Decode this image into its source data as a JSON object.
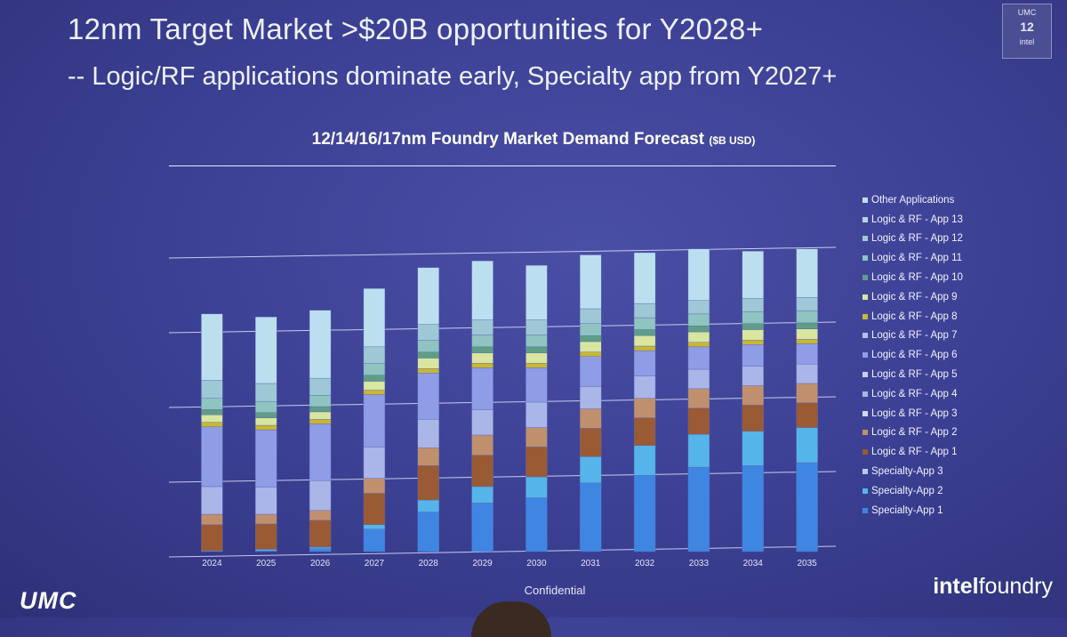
{
  "header": {
    "title_main": "12nm Target Market  >$20B opportunities for Y2028+",
    "title_sub": "-- Logic/RF applications dominate early, Specialty app from Y2027+",
    "badge_top": "UMC",
    "badge_num": "12",
    "badge_bottom": "intel"
  },
  "footer": {
    "confidential": "Confidential",
    "umc_logo": "UMC",
    "intel_logo_a": "intel",
    "intel_logo_b": "foundry"
  },
  "chart_data": {
    "type": "bar",
    "stacked": true,
    "title": "12/14/16/17nm Foundry Market Demand Forecast",
    "title_unit": "($B USD)",
    "grid": true,
    "legend_position": "right",
    "categories": [
      "2024",
      "2025",
      "2026",
      "2027",
      "2028",
      "2029",
      "2030",
      "2031",
      "2032",
      "2033",
      "2034",
      "2035"
    ],
    "series": [
      {
        "name": "Specialty-App 1",
        "color": "#3f86e3",
        "values": [
          0.0,
          0.1,
          0.4,
          3.0,
          5.3,
          6.5,
          7.2,
          9.2,
          10.2,
          11.3,
          11.5,
          11.9
        ]
      },
      {
        "name": "Specialty-App 2",
        "color": "#55b5ea",
        "values": [
          0.1,
          0.2,
          0.2,
          0.6,
          1.6,
          2.2,
          2.8,
          3.5,
          4.0,
          4.4,
          4.6,
          4.7
        ]
      },
      {
        "name": "Specialty-App 3",
        "color": "#b8c8ea",
        "values": [
          0,
          0,
          0,
          0,
          0,
          0,
          0,
          0,
          0,
          0,
          0,
          0
        ]
      },
      {
        "name": "Logic & RF - App 1",
        "color": "#9a5a34",
        "values": [
          3.5,
          3.4,
          3.6,
          4.2,
          4.6,
          4.2,
          4.0,
          3.8,
          3.7,
          3.5,
          3.5,
          3.3
        ]
      },
      {
        "name": "Logic & RF - App 2",
        "color": "#c0906e",
        "values": [
          1.4,
          1.3,
          1.3,
          2.0,
          2.4,
          2.7,
          2.6,
          2.6,
          2.6,
          2.6,
          2.6,
          2.6
        ]
      },
      {
        "name": "Logic & RF - App 3",
        "color": "#d2d8f0",
        "values": [
          0,
          0,
          0,
          0,
          0,
          0,
          0,
          0,
          0,
          0,
          0,
          0
        ]
      },
      {
        "name": "Logic & RF - App 4",
        "color": "#aab6e8",
        "values": [
          3.7,
          3.6,
          4.0,
          4.2,
          3.8,
          3.4,
          3.4,
          3.0,
          3.0,
          2.6,
          2.6,
          2.6
        ]
      },
      {
        "name": "Logic & RF - App 5",
        "color": "#c6cfef",
        "values": [
          0,
          0,
          0,
          0,
          0,
          0,
          0,
          0,
          0,
          0,
          0,
          0
        ]
      },
      {
        "name": "Logic & RF - App 6",
        "color": "#8f9de6",
        "values": [
          8.0,
          7.7,
          7.6,
          7.0,
          6.2,
          5.6,
          4.6,
          4.0,
          3.4,
          3.0,
          2.9,
          2.7
        ]
      },
      {
        "name": "Logic & RF - App 7",
        "color": "#b6bdea",
        "values": [
          0,
          0,
          0,
          0,
          0,
          0,
          0,
          0,
          0,
          0,
          0,
          0
        ]
      },
      {
        "name": "Logic & RF - App 8",
        "color": "#c9b830",
        "values": [
          0.6,
          0.6,
          0.6,
          0.6,
          0.6,
          0.6,
          0.6,
          0.6,
          0.6,
          0.6,
          0.6,
          0.6
        ]
      },
      {
        "name": "Logic & RF - App 9",
        "color": "#d8e6a0",
        "values": [
          1.0,
          1.0,
          1.0,
          1.2,
          1.4,
          1.4,
          1.4,
          1.4,
          1.4,
          1.4,
          1.4,
          1.4
        ]
      },
      {
        "name": "Logic & RF - App 10",
        "color": "#5f9e86",
        "values": [
          0.7,
          0.7,
          0.7,
          0.8,
          0.8,
          0.8,
          0.8,
          0.8,
          0.8,
          0.8,
          0.8,
          0.8
        ]
      },
      {
        "name": "Logic & RF - App 11",
        "color": "#8fc4c0",
        "values": [
          1.5,
          1.5,
          1.5,
          1.6,
          1.6,
          1.6,
          1.6,
          1.6,
          1.6,
          1.6,
          1.6,
          1.6
        ]
      },
      {
        "name": "Logic & RF - App 12",
        "color": "#9fc8d6",
        "values": [
          2.4,
          2.4,
          2.3,
          2.2,
          2.1,
          2.0,
          2.0,
          2.0,
          1.9,
          1.8,
          1.8,
          1.8
        ]
      },
      {
        "name": "Logic & RF - App 13",
        "color": "#b2d6e8",
        "values": [
          0,
          0,
          0,
          0,
          0,
          0,
          0,
          0,
          0,
          0,
          0,
          0
        ]
      },
      {
        "name": "Other Applications",
        "color": "#bcdff0",
        "values": [
          8.9,
          8.9,
          9.1,
          7.8,
          7.6,
          7.9,
          7.3,
          7.2,
          6.8,
          6.9,
          6.3,
          6.5
        ]
      }
    ],
    "ylim": [
      0,
      45
    ],
    "gridlines": [
      0,
      10,
      20,
      30,
      40
    ]
  }
}
